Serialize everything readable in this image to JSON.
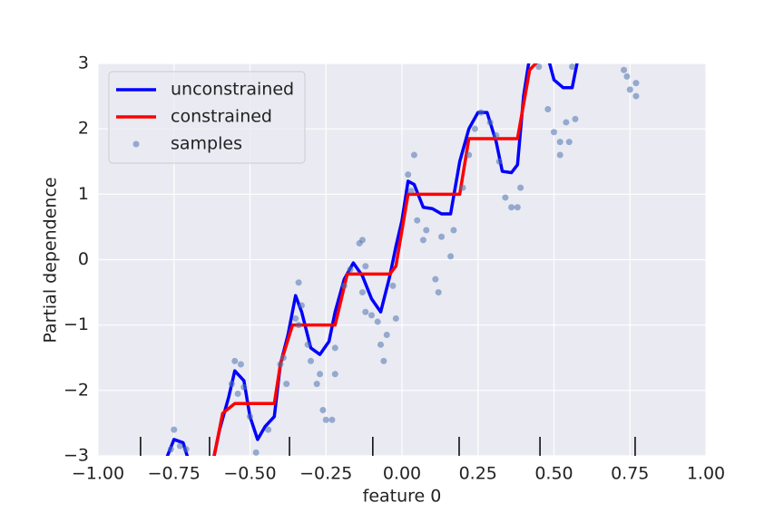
{
  "chart_data": {
    "type": "line",
    "xlabel": "feature 0",
    "ylabel": "Partial dependence",
    "xlim": [
      -1,
      1
    ],
    "ylim": [
      -3,
      3
    ],
    "xticks": [
      {
        "value": -1,
        "label": "−1.00"
      },
      {
        "value": -0.75,
        "label": "−0.75"
      },
      {
        "value": -0.5,
        "label": "−0.50"
      },
      {
        "value": -0.25,
        "label": "−0.25"
      },
      {
        "value": 0,
        "label": "0.00"
      },
      0.25,
      {
        "value": 0.5,
        "label": "0.50"
      },
      0.75,
      {
        "value": 1,
        "label": "1.00"
      }
    ],
    "yticks": [
      {
        "value": -3,
        "label": "−3"
      },
      {
        "value": -2,
        "label": "−2"
      },
      {
        "value": -1,
        "label": "−1"
      },
      0,
      1,
      2,
      3
    ],
    "grid": true,
    "legend": "upper left",
    "series": [
      {
        "name": "unconstrained",
        "color": "#0000ff",
        "x": [
          -0.78,
          -0.75,
          -0.72,
          -0.7,
          -0.62,
          -0.6,
          -0.57,
          -0.55,
          -0.52,
          -0.5,
          -0.475,
          -0.45,
          -0.42,
          -0.4,
          -0.375,
          -0.35,
          -0.33,
          -0.3,
          -0.27,
          -0.24,
          -0.22,
          -0.19,
          -0.16,
          -0.13,
          -0.1,
          -0.07,
          -0.04,
          -0.02,
          0.0,
          0.02,
          0.04,
          0.07,
          0.1,
          0.13,
          0.16,
          0.19,
          0.22,
          0.25,
          0.28,
          0.31,
          0.33,
          0.36,
          0.38,
          0.4,
          0.42,
          0.45,
          0.48,
          0.5,
          0.53,
          0.56,
          0.58
        ],
        "values": [
          -3.1,
          -2.75,
          -2.8,
          -3.1,
          -3.05,
          -2.6,
          -2.1,
          -1.7,
          -1.85,
          -2.4,
          -2.75,
          -2.55,
          -2.4,
          -1.6,
          -1.15,
          -0.55,
          -0.8,
          -1.35,
          -1.45,
          -1.25,
          -0.8,
          -0.3,
          -0.05,
          -0.25,
          -0.6,
          -0.8,
          -0.25,
          0.2,
          0.6,
          1.2,
          1.15,
          0.8,
          0.78,
          0.7,
          0.7,
          1.5,
          2.0,
          2.25,
          2.25,
          1.8,
          1.35,
          1.33,
          1.45,
          2.5,
          3.1,
          3.05,
          3.1,
          2.75,
          2.63,
          2.63,
          3.1
        ]
      },
      {
        "name": "constrained",
        "color": "#ff0000",
        "x": [
          -0.62,
          -0.59,
          -0.55,
          -0.42,
          -0.4,
          -0.36,
          -0.22,
          -0.18,
          -0.04,
          -0.02,
          0.02,
          0.19,
          0.22,
          0.38,
          0.42,
          0.45
        ],
        "values": [
          -3.05,
          -2.35,
          -2.2,
          -2.2,
          -1.6,
          -1.0,
          -1.0,
          -0.22,
          -0.22,
          -0.1,
          1.0,
          1.0,
          1.85,
          1.85,
          2.9,
          3.05
        ]
      },
      {
        "name": "samples",
        "color": "#4c72b0",
        "type": "scatter",
        "x": [
          -0.75,
          -0.76,
          -0.73,
          -0.71,
          -0.55,
          -0.53,
          -0.56,
          -0.52,
          -0.54,
          -0.5,
          -0.48,
          -0.44,
          -0.4,
          -0.38,
          -0.39,
          -0.35,
          -0.34,
          -0.33,
          -0.34,
          -0.31,
          -0.3,
          -0.27,
          -0.28,
          -0.26,
          -0.25,
          -0.23,
          -0.22,
          -0.22,
          -0.19,
          -0.17,
          -0.14,
          -0.13,
          -0.12,
          -0.13,
          -0.12,
          -0.1,
          -0.08,
          -0.07,
          -0.06,
          -0.05,
          -0.03,
          -0.02,
          0.02,
          0.03,
          0.05,
          0.07,
          0.04,
          0.08,
          0.11,
          0.12,
          0.13,
          0.16,
          0.17,
          0.2,
          0.22,
          0.24,
          0.26,
          0.29,
          0.31,
          0.32,
          0.34,
          0.36,
          0.38,
          0.39,
          0.45,
          0.48,
          0.5,
          0.52,
          0.54,
          0.55,
          0.57,
          0.52,
          0.56,
          0.73,
          0.75,
          0.77,
          0.77,
          0.74
        ],
        "values": [
          -2.6,
          -2.9,
          -2.85,
          -2.9,
          -1.55,
          -1.6,
          -1.9,
          -1.95,
          -2.05,
          -2.4,
          -2.95,
          -2.6,
          -1.6,
          -1.9,
          -1.5,
          -0.9,
          -0.35,
          -0.7,
          -1.0,
          -1.3,
          -1.55,
          -1.75,
          -1.9,
          -2.3,
          -2.45,
          -2.45,
          -1.75,
          -1.35,
          -0.4,
          -0.15,
          0.25,
          0.3,
          -0.1,
          -0.5,
          -0.8,
          -0.85,
          -0.95,
          -1.3,
          -1.55,
          -1.15,
          -0.4,
          -0.9,
          1.3,
          1.05,
          0.6,
          0.3,
          1.6,
          0.45,
          -0.3,
          -0.5,
          0.35,
          0.05,
          0.45,
          1.1,
          1.6,
          2.0,
          2.25,
          2.1,
          1.9,
          1.5,
          0.95,
          0.8,
          0.8,
          1.1,
          2.95,
          2.3,
          1.95,
          1.8,
          2.1,
          1.8,
          2.15,
          1.6,
          2.95,
          2.9,
          2.6,
          2.7,
          2.5,
          2.8
        ]
      }
    ],
    "deciles": {
      "x": [
        -0.86,
        -0.633,
        -0.37,
        -0.096,
        0.188,
        0.454,
        0.767
      ]
    }
  }
}
